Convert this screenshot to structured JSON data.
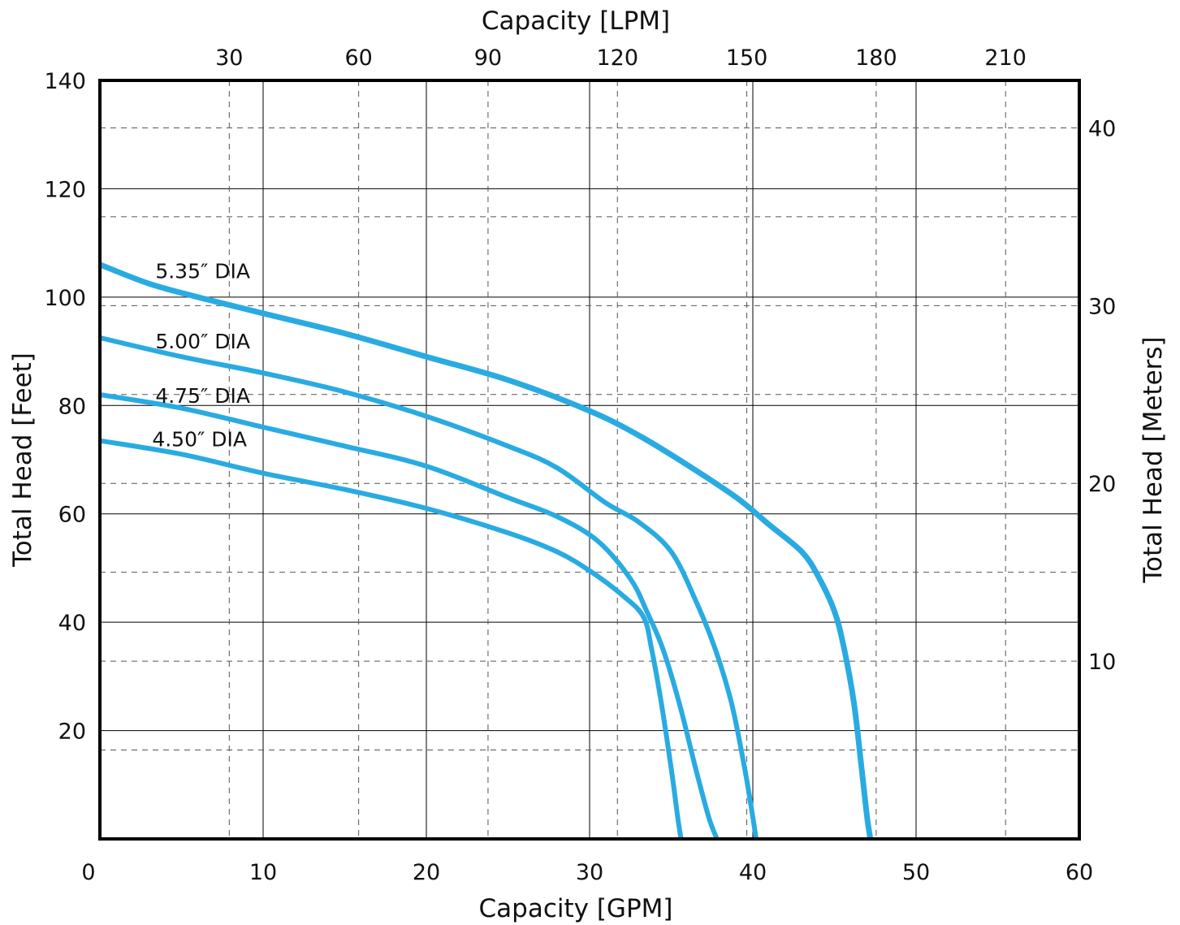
{
  "chart_data": {
    "type": "line",
    "title": "",
    "xlabel": "Capacity [GPM]",
    "ylabel": "Total Head [Feet]",
    "x2label": "Capacity [LPM]",
    "y2label": "Total Head [Meters]",
    "xlim": [
      0,
      60
    ],
    "ylim": [
      0,
      140
    ],
    "x2lim": [
      0,
      227.1
    ],
    "y2lim": [
      0,
      42.67
    ],
    "x_ticks": [
      0,
      10,
      20,
      30,
      40,
      50,
      60
    ],
    "x_tick_labels": [
      "0",
      "10",
      "20",
      "30",
      "40",
      "50",
      "60"
    ],
    "y_ticks": [
      20,
      40,
      60,
      80,
      100,
      120,
      140
    ],
    "y_tick_labels": [
      "20",
      "40",
      "60",
      "80",
      "100",
      "120",
      "140"
    ],
    "x2_ticks": [
      30,
      60,
      90,
      120,
      150,
      180,
      210
    ],
    "x2_tick_labels": [
      "30",
      "60",
      "90",
      "120",
      "150",
      "180",
      "210"
    ],
    "y2_ticks": [
      10,
      20,
      30,
      40
    ],
    "y2_tick_labels": [
      "10",
      "20",
      "30",
      "40"
    ],
    "grid": true,
    "grid_minor": true,
    "legend": "none",
    "line_color": "#29abe2",
    "series": [
      {
        "name": "5.35″ DIA",
        "x": [
          0,
          3,
          6,
          10,
          15,
          20,
          25,
          30,
          33,
          36,
          39,
          41,
          43,
          44,
          45,
          45.6,
          46.2,
          46.7,
          47.0,
          47.2
        ],
        "y": [
          106,
          102.5,
          100,
          97,
          93.3,
          89,
          84.7,
          79,
          74.5,
          69,
          63,
          58,
          53,
          48.5,
          42,
          35,
          25,
          12,
          4,
          0
        ]
      },
      {
        "name": "5.00″ DIA",
        "x": [
          0,
          5,
          10,
          15,
          20,
          25,
          28,
          31,
          33,
          35,
          36.5,
          37.7,
          38.7,
          39.5,
          40.0,
          40.2
        ],
        "y": [
          92.5,
          89,
          86,
          82.5,
          78,
          72.5,
          68.5,
          62,
          58.5,
          53,
          44,
          35,
          25,
          13,
          4,
          0
        ]
      },
      {
        "name": "4.75″ DIA",
        "x": [
          0,
          5,
          10,
          15,
          20,
          25,
          28,
          30.5,
          32.5,
          33.5,
          34.5,
          35.5,
          36.5,
          37.3,
          37.8
        ],
        "y": [
          82,
          79.5,
          76,
          72.5,
          68.8,
          63,
          59.5,
          55,
          48,
          42,
          35,
          25,
          13,
          4,
          0
        ]
      },
      {
        "name": "4.50″ DIA",
        "x": [
          0,
          5,
          10,
          15,
          20,
          25,
          28,
          30,
          32,
          33.3,
          33.8,
          34.4,
          35.0,
          35.4,
          35.6
        ],
        "y": [
          73.5,
          71,
          67.5,
          64.5,
          61,
          56.5,
          53,
          49.5,
          45,
          41,
          35,
          25,
          13,
          4,
          0
        ]
      }
    ],
    "label_positions": [
      {
        "series": 0,
        "x": 3.4,
        "y": 103.5
      },
      {
        "series": 1,
        "x": 3.4,
        "y": 90.5
      },
      {
        "series": 2,
        "x": 3.4,
        "y": 80.5
      },
      {
        "series": 3,
        "x": 3.2,
        "y": 72.5
      }
    ]
  }
}
